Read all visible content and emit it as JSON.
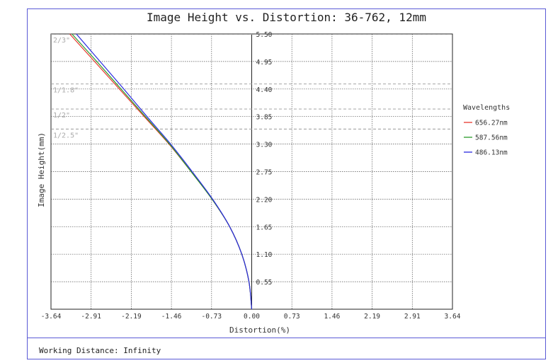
{
  "chart_data": {
    "type": "line",
    "title": "Image Height vs. Distortion: 36-762, 12mm",
    "xlabel": "Distortion(%)",
    "ylabel": "Image Height(mm)",
    "xlim": [
      -3.64,
      3.64
    ],
    "ylim": [
      0,
      5.5
    ],
    "x_ticks": [
      "-3.64",
      "-2.91",
      "-2.19",
      "-1.46",
      "-0.73",
      "0.00",
      "0.73",
      "1.46",
      "2.19",
      "2.91",
      "3.64"
    ],
    "y_ticks": [
      "0.55",
      "1.10",
      "1.65",
      "2.20",
      "2.75",
      "3.30",
      "3.85",
      "4.40",
      "4.95",
      "5.50"
    ],
    "grid": true,
    "legend_title": "Wavelengths",
    "legend_position": "right",
    "sensor_lines": [
      {
        "label": "2/3\"",
        "y": 5.5
      },
      {
        "label": "1/1.8\"",
        "y": 4.5
      },
      {
        "label": "1/2\"",
        "y": 4.0
      },
      {
        "label": "1/2.5\"",
        "y": 3.6
      }
    ],
    "series": [
      {
        "name": "656.27nm",
        "color": "#e8372c",
        "x": [
          0,
          -0.05,
          -0.18,
          -0.4,
          -0.72,
          -1.1,
          -1.5,
          -1.95,
          -2.4,
          -2.85,
          -3.3
        ],
        "y": [
          0,
          0.55,
          1.1,
          1.65,
          2.2,
          2.75,
          3.3,
          3.85,
          4.4,
          4.95,
          5.5
        ]
      },
      {
        "name": "587.56nm",
        "color": "#2a9a2a",
        "x": [
          0,
          -0.05,
          -0.18,
          -0.4,
          -0.72,
          -1.1,
          -1.49,
          -1.93,
          -2.37,
          -2.81,
          -3.26
        ],
        "y": [
          0,
          0.55,
          1.1,
          1.65,
          2.2,
          2.75,
          3.3,
          3.85,
          4.4,
          4.95,
          5.5
        ]
      },
      {
        "name": "486.13nm",
        "color": "#2a2ae0",
        "x": [
          0,
          -0.05,
          -0.18,
          -0.4,
          -0.71,
          -1.08,
          -1.47,
          -1.9,
          -2.32,
          -2.75,
          -3.18
        ],
        "y": [
          0,
          0.55,
          1.1,
          1.65,
          2.2,
          2.75,
          3.3,
          3.85,
          4.4,
          4.95,
          5.5
        ]
      }
    ]
  },
  "footer": {
    "working_distance": "Working Distance: Infinity"
  }
}
